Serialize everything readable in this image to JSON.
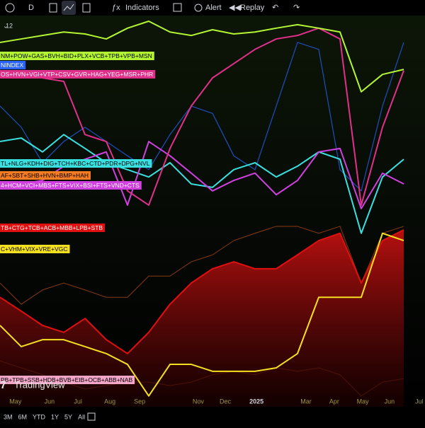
{
  "toolbar": {
    "interval": "D",
    "indicators": "Indicators",
    "alert": "Alert",
    "replay": "Replay"
  },
  "legend_count": "12",
  "watermark": "TradingView",
  "ranges": [
    "3M",
    "6M",
    "YTD",
    "1Y",
    "5Y",
    "All"
  ],
  "chart_data": {
    "type": "line",
    "x": [
      0,
      1,
      2,
      3,
      4,
      5,
      6,
      7,
      8,
      9,
      10,
      11,
      12,
      13,
      14,
      15,
      16,
      17,
      18,
      19
    ],
    "xlim": [
      0,
      20
    ],
    "xticks": [
      {
        "value": 0.73,
        "label": "May"
      },
      {
        "value": 2.33,
        "label": "Jun"
      },
      {
        "value": 3.67,
        "label": "Jul"
      },
      {
        "value": 5.17,
        "label": "Aug"
      },
      {
        "value": 6.57,
        "label": "Sep"
      },
      {
        "value": 9.33,
        "label": "Nov"
      },
      {
        "value": 10.6,
        "label": "Dec"
      },
      {
        "value": 12.07,
        "label": "2025"
      },
      {
        "value": 14.4,
        "label": "Mar"
      },
      {
        "value": 15.73,
        "label": "Apr"
      },
      {
        "value": 17.07,
        "label": "May"
      },
      {
        "value": 18.33,
        "label": "Jun"
      },
      {
        "value": 19.73,
        "label": "Jul"
      }
    ],
    "ylim": [
      0,
      100
    ],
    "series": [
      {
        "name": "NM+POW+GAS+BVH+BID+PLX+VCB+TPB+VPB+MSN",
        "color": "#b4f533",
        "values": [
          94.5,
          95.4,
          96.3,
          97.2,
          96.7,
          95.4,
          98.2,
          100,
          97.2,
          96.3,
          97.8,
          96.7,
          97.2,
          98.2,
          99.1,
          98.2,
          97.2,
          81.7,
          86.2,
          87.5
        ]
      },
      {
        "name": "NINDEX",
        "color": "#1f4fbf",
        "values": [
          78,
          72.5,
          63.3,
          68.8,
          72.5,
          68.8,
          65.1,
          61.5,
          70.6,
          78,
          76.1,
          65.1,
          61.5,
          78,
          94.5,
          92.7,
          61.5,
          56,
          78,
          94.5
        ]
      },
      {
        "name": "OS+HVN+VGI+VTP+CSV+GVR+HAG+YEG+MSR+PHR",
        "color": "#e0308a",
        "values": [
          87.2,
          86.2,
          85.3,
          84.4,
          70.6,
          68.8,
          56,
          52.3,
          67,
          78,
          85.3,
          89,
          92.7,
          95.4,
          96.3,
          98.2,
          95.4,
          52.3,
          72.5,
          87.2
        ]
      },
      {
        "name": "TL+NLG+KDH+DIG+TCH+KBC+CTD+PDR+DPG+NVL",
        "color": "#3ae0e0",
        "values": [
          68.8,
          69.7,
          66.1,
          70.6,
          67,
          63.3,
          61.5,
          59.6,
          63.3,
          57.8,
          56.9,
          61.5,
          63.3,
          59.6,
          62.4,
          66.1,
          64.2,
          45,
          59.6,
          64.2
        ]
      },
      {
        "name": "AF+SBT+SHB+HVN+BMP+HAH",
        "color": "#8a3a10",
        "values": [
          32.1,
          26.6,
          30.3,
          32.1,
          30.3,
          28.4,
          28.4,
          33.9,
          33.9,
          37.6,
          39.4,
          43.1,
          45,
          46.8,
          46.8,
          45,
          46.8,
          32.1,
          45,
          46.8
        ]
      },
      {
        "name": "4+HCM+VCI+MBS+FTS+VIX+BSI+FTS+VND+CTS",
        "color": "#d040e0",
        "values": [
          56.9,
          57.8,
          58.7,
          62.4,
          64.2,
          66.1,
          52.3,
          68.8,
          65.1,
          60.6,
          56,
          58.7,
          60.6,
          55,
          58.7,
          66.1,
          67,
          51.4,
          60.6,
          57.8
        ]
      },
      {
        "name": "TB+CTG+TCB+ACB+MBB+LPB+STB",
        "color": "#e01010",
        "fill": true,
        "values": [
          28.4,
          24.8,
          21.1,
          19.3,
          22.9,
          17.4,
          13.8,
          19.3,
          26.6,
          32.1,
          35.8,
          37.6,
          35.8,
          35.8,
          39.4,
          43.1,
          45,
          32.1,
          43.1,
          45.9
        ]
      },
      {
        "name": "C+VHM+VIX+VRE+VGC",
        "color": "#f5e020",
        "values": [
          21.1,
          15.6,
          17.4,
          17.4,
          15.6,
          13.8,
          11,
          2.8,
          11,
          11,
          9.2,
          9.2,
          9.2,
          10.1,
          13.8,
          28.4,
          28.4,
          28.4,
          45,
          43.1
        ]
      },
      {
        "name": "PB+TPB+SSB+HDB+BVB+EIB+OCB+ABB+NAB",
        "color": "#6a3018",
        "values": [
          11.9,
          10.1,
          8.3,
          6.4,
          4.6,
          5.5,
          6.4,
          6.4,
          5.5,
          6.4,
          8.3,
          9.2,
          8.3,
          10.1,
          9.2,
          10.1,
          8.3,
          2.8,
          6.4,
          7.3
        ]
      }
    ]
  }
}
